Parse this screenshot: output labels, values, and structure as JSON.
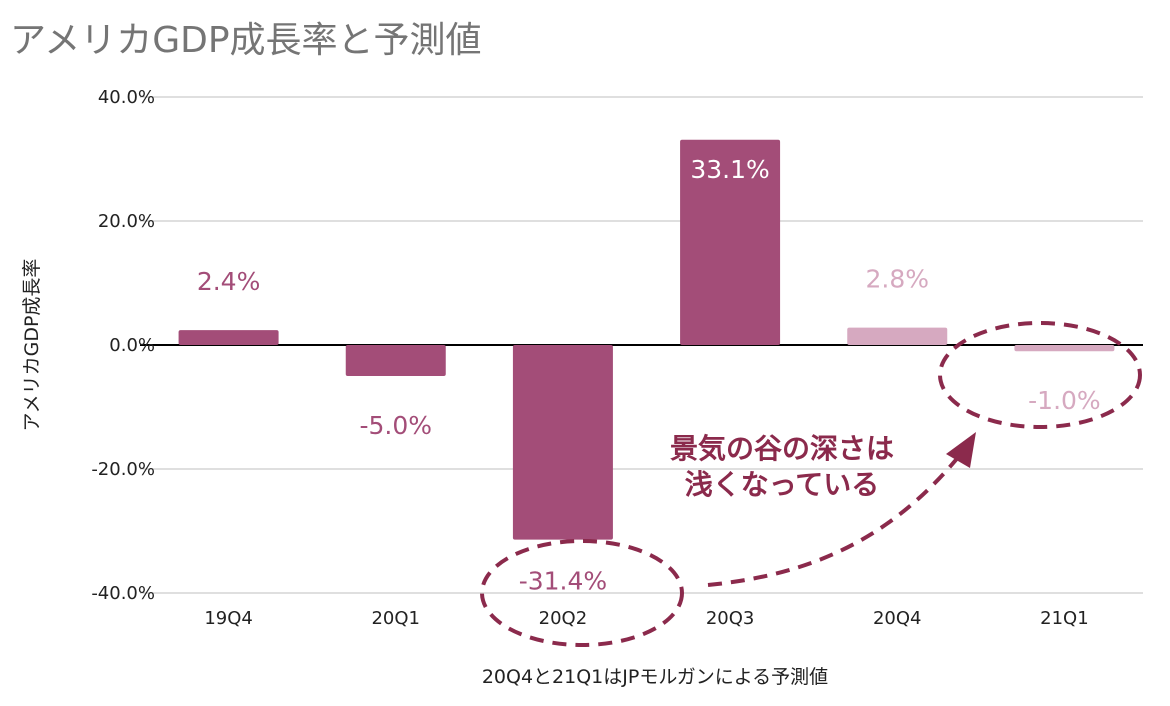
{
  "chart_data": {
    "type": "bar",
    "title": "アメリカGDP成長率と予測値",
    "ylabel": "アメリカGDP成長率",
    "xlabel": "20Q4と21Q1はJPモルガンによる予測値",
    "categories": [
      "19Q4",
      "20Q1",
      "20Q2",
      "20Q3",
      "20Q4",
      "21Q1"
    ],
    "values": [
      2.4,
      -5.0,
      -31.4,
      33.1,
      2.8,
      -1.0
    ],
    "data_labels": [
      "2.4%",
      "-5.0%",
      "-31.4%",
      "33.1%",
      "2.8%",
      "-1.0%"
    ],
    "forecast": [
      false,
      false,
      false,
      false,
      true,
      true
    ],
    "ylim": [
      -40,
      40
    ],
    "yticks": [
      40,
      20,
      0,
      -20,
      -40
    ],
    "ytick_labels": [
      "40.0%",
      "20.0%",
      "0.0%",
      "-20.0%",
      "-40.0%"
    ],
    "grid": true,
    "annotation": {
      "line1": "景気の谷の深さは",
      "line2": "浅くなっている"
    },
    "colors": {
      "actual": "#a34d78",
      "forecast": "#d6a9c0",
      "annotation": "#8b2a4c",
      "grid": "#cccccc"
    }
  }
}
